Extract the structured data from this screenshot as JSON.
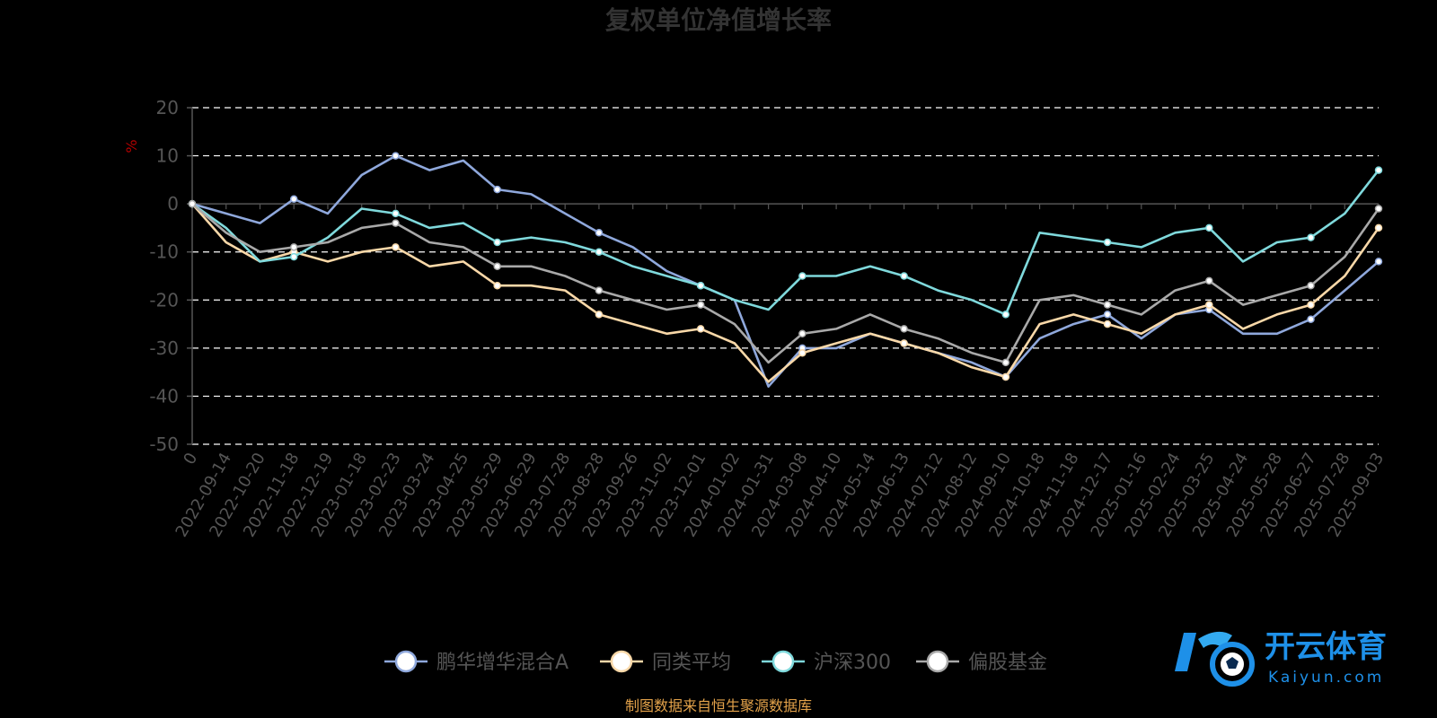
{
  "chart_data": {
    "type": "line",
    "title": "复权单位净值增长率",
    "y_unit": "%",
    "ylim": [
      -50,
      20
    ],
    "y_ticks": [
      20,
      10,
      0,
      -10,
      -20,
      -30,
      -40,
      -50
    ],
    "grid": true,
    "legend_position": "bottom-center",
    "x_labels": [
      "0",
      "2022-09-14",
      "2022-10-20",
      "2022-11-18",
      "2022-12-19",
      "2023-01-18",
      "2023-02-23",
      "2023-03-24",
      "2023-04-25",
      "2023-05-29",
      "2023-06-29",
      "2023-07-28",
      "2023-08-28",
      "2023-09-26",
      "2023-11-02",
      "2023-12-01",
      "2024-01-02",
      "2024-01-31",
      "2024-03-08",
      "2024-04-10",
      "2024-05-14",
      "2024-06-13",
      "2024-07-12",
      "2024-08-12",
      "2024-09-10",
      "2024-10-18",
      "2024-11-18",
      "2024-12-17",
      "2025-01-16",
      "2025-02-24",
      "2025-03-25",
      "2025-04-24",
      "2025-05-28",
      "2025-06-27",
      "2025-07-28",
      "2025-09-03"
    ],
    "series": [
      {
        "name": "鹏华增华混合A",
        "color": "#8fa8dc",
        "values": [
          0,
          -2,
          -4,
          1,
          -2,
          6,
          10,
          7,
          9,
          3,
          2,
          -2,
          -6,
          -9,
          -14,
          -17,
          -20,
          -38,
          -30,
          -30,
          -27,
          -29,
          -31,
          -33,
          -36,
          -28,
          -25,
          -23,
          -28,
          -23,
          -22,
          -27,
          -27,
          -24,
          -18,
          -12
        ]
      },
      {
        "name": "同类平均",
        "color": "#f9d8a8",
        "values": [
          0,
          -8,
          -12,
          -10,
          -12,
          -10,
          -9,
          -13,
          -12,
          -17,
          -17,
          -18,
          -23,
          -25,
          -27,
          -26,
          -29,
          -37,
          -31,
          -29,
          -27,
          -29,
          -31,
          -34,
          -36,
          -25,
          -23,
          -25,
          -27,
          -23,
          -21,
          -26,
          -23,
          -21,
          -15,
          -5
        ]
      },
      {
        "name": "沪深300",
        "color": "#7fd9dc",
        "values": [
          0,
          -5,
          -12,
          -11,
          -7,
          -1,
          -2,
          -5,
          -4,
          -8,
          -7,
          -8,
          -10,
          -13,
          -15,
          -17,
          -20,
          -22,
          -15,
          -15,
          -13,
          -15,
          -18,
          -20,
          -23,
          -6,
          -7,
          -8,
          -9,
          -6,
          -5,
          -12,
          -8,
          -7,
          -2,
          7
        ]
      },
      {
        "name": "偏股基金",
        "color": "#a9a9a9",
        "values": [
          0,
          -6,
          -10,
          -9,
          -8,
          -5,
          -4,
          -8,
          -9,
          -13,
          -13,
          -15,
          -18,
          -20,
          -22,
          -21,
          -25,
          -33,
          -27,
          -26,
          -23,
          -26,
          -28,
          -31,
          -33,
          -20,
          -19,
          -21,
          -23,
          -18,
          -16,
          -21,
          -19,
          -17,
          -11,
          -1
        ]
      }
    ]
  },
  "source_note": "制图数据来自恒生聚源数据库",
  "watermark": {
    "cn": "开云体育",
    "en": "Kaiyun.com"
  }
}
